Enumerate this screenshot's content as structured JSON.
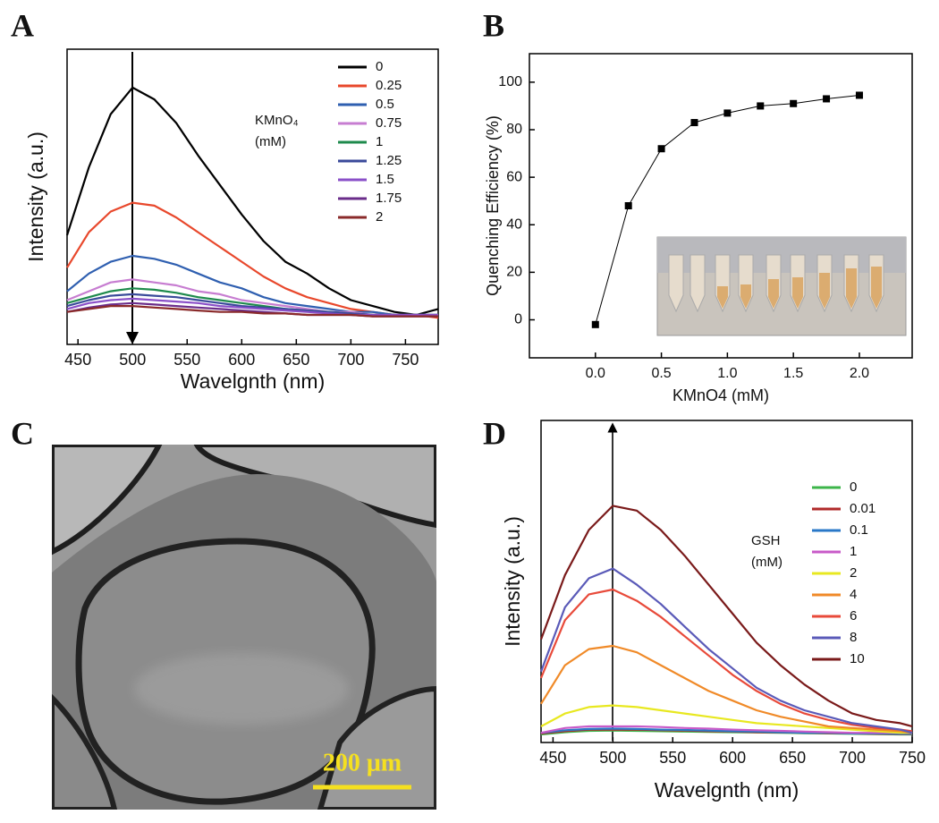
{
  "panel_labels": [
    "A",
    "B",
    "C",
    "D"
  ],
  "image": {
    "scale_bar": "200 μm"
  },
  "chart_data": [
    {
      "type": "line",
      "x_label": "Wavelgnth (nm)",
      "y_label": "Intensity (a.u.)",
      "legend_title": [
        "KMnO₄",
        "(mM)"
      ],
      "legend": "upper right",
      "xlim": [
        440,
        780
      ],
      "xticks": [
        450,
        500,
        550,
        600,
        650,
        700,
        750
      ],
      "ylim": [
        0,
        100
      ],
      "x": [
        440,
        460,
        480,
        500,
        520,
        540,
        560,
        580,
        600,
        620,
        640,
        660,
        680,
        700,
        720,
        740,
        760,
        780
      ],
      "series": [
        {
          "name": "0",
          "color": "#000000",
          "values": [
            37,
            60,
            78,
            87,
            83,
            75,
            64,
            54,
            44,
            35,
            28,
            24,
            19,
            15,
            13,
            11,
            10,
            12
          ]
        },
        {
          "name": "0.25",
          "color": "#e8482c",
          "values": [
            26,
            38,
            45,
            48,
            47,
            43,
            38,
            33,
            28,
            23,
            19,
            16,
            14,
            12,
            11,
            10,
            10,
            9
          ]
        },
        {
          "name": "0.5",
          "color": "#2f5fb0",
          "values": [
            18,
            24,
            28,
            30,
            29,
            27,
            24,
            21,
            19,
            16,
            14,
            13,
            12,
            11,
            11,
            10,
            10,
            10
          ]
        },
        {
          "name": "0.75",
          "color": "#c77dd1",
          "values": [
            15,
            18,
            21,
            22,
            21,
            20,
            18,
            17,
            15,
            14,
            13,
            12,
            11,
            11,
            10,
            10,
            10,
            10
          ]
        },
        {
          "name": "1",
          "color": "#1e8a4c",
          "values": [
            14,
            16,
            18,
            19,
            18.5,
            17.5,
            16,
            15,
            14,
            13,
            12,
            11.5,
            11,
            10.5,
            10,
            10,
            10,
            10
          ]
        },
        {
          "name": "1.25",
          "color": "#3a4a9a",
          "values": [
            13,
            15,
            16.5,
            17,
            16.5,
            16,
            15,
            14,
            13,
            12.5,
            12,
            11.5,
            11,
            10.5,
            10,
            10,
            10,
            10
          ]
        },
        {
          "name": "1.5",
          "color": "#8a4fc8",
          "values": [
            12,
            14,
            15,
            15.5,
            15,
            14.5,
            14,
            13,
            12.5,
            12,
            11.5,
            11,
            10.5,
            10,
            10,
            10,
            10,
            10
          ]
        },
        {
          "name": "1.75",
          "color": "#6a2c8a",
          "values": [
            11,
            12.5,
            13.5,
            14,
            13.5,
            13,
            12.5,
            12,
            11.5,
            11,
            10.5,
            10,
            10,
            10,
            9.5,
            9.5,
            9.5,
            9.5
          ]
        },
        {
          "name": "2",
          "color": "#8a2a2a",
          "values": [
            11,
            12,
            13,
            13,
            12.5,
            12,
            11.5,
            11,
            11,
            10.5,
            10.5,
            10,
            10,
            10,
            9.5,
            9.5,
            9.5,
            9.5
          ]
        }
      ]
    },
    {
      "type": "line",
      "markers": true,
      "color": "#000000",
      "x_label": "KMnO4 (mM)",
      "y_label": "Quenching Efficiency (%)",
      "xlim": [
        -0.5,
        2.4
      ],
      "xticks": [
        {
          "value": 0,
          "label": "0.0"
        },
        {
          "value": 0.5,
          "label": "0.5"
        },
        {
          "value": 1,
          "label": "1.0"
        },
        {
          "value": 1.5,
          "label": "1.5"
        },
        {
          "value": 2,
          "label": "2.0"
        }
      ],
      "ylim": [
        -16,
        112
      ],
      "yticks": [
        0,
        20,
        40,
        60,
        80,
        100
      ],
      "x": [
        0,
        0.25,
        0.5,
        0.75,
        1,
        1.25,
        1.5,
        1.75,
        2
      ],
      "values": [
        -2,
        48,
        72,
        83,
        87,
        90,
        91,
        93,
        94.5
      ]
    },
    {
      "type": "line",
      "x_label": "Wavelgnth (nm)",
      "y_label": "Intensity (a.u.)",
      "legend_title": [
        "GSH",
        "(mM)"
      ],
      "legend": "upper right",
      "xlim": [
        440,
        750
      ],
      "xticks": [
        450,
        500,
        550,
        600,
        650,
        700,
        750
      ],
      "ylim": [
        0,
        100
      ],
      "x": [
        440,
        460,
        480,
        500,
        520,
        540,
        560,
        580,
        600,
        620,
        640,
        660,
        680,
        700,
        720,
        740,
        750
      ],
      "series": [
        {
          "name": "0",
          "color": "#3cb54a",
          "values": [
            2.5,
            3.2,
            3.6,
            3.7,
            3.6,
            3.5,
            3.4,
            3.3,
            3.2,
            3.1,
            3,
            2.9,
            2.8,
            2.7,
            2.6,
            2.5,
            2.5
          ]
        },
        {
          "name": "0.01",
          "color": "#b02a2a",
          "values": [
            2.8,
            3.5,
            4,
            4,
            4,
            3.8,
            3.7,
            3.5,
            3.4,
            3.2,
            3.1,
            3,
            2.9,
            2.8,
            2.7,
            2.6,
            2.6
          ]
        },
        {
          "name": "0.1",
          "color": "#2a78c8",
          "values": [
            3,
            3.8,
            4.2,
            4.3,
            4.2,
            4,
            3.9,
            3.7,
            3.5,
            3.4,
            3.2,
            3,
            3,
            2.8,
            2.8,
            2.7,
            2.7
          ]
        },
        {
          "name": "1",
          "color": "#c85ac8",
          "values": [
            3,
            4.5,
            5,
            5,
            5,
            4.8,
            4.5,
            4.3,
            4,
            3.8,
            3.6,
            3.4,
            3.2,
            3,
            3,
            3,
            3
          ]
        },
        {
          "name": "2",
          "color": "#e8e820",
          "values": [
            5,
            9,
            11,
            11.5,
            11,
            10,
            9,
            8,
            7,
            6,
            5.5,
            5,
            4.5,
            4,
            3.5,
            3,
            3
          ]
        },
        {
          "name": "4",
          "color": "#f08a28",
          "values": [
            12,
            24,
            29,
            30,
            28,
            24,
            20,
            16,
            13,
            10,
            8,
            6.5,
            5,
            4.5,
            4,
            3.5,
            3
          ]
        },
        {
          "name": "6",
          "color": "#e84a3a",
          "values": [
            20,
            38,
            46,
            47.5,
            44,
            39,
            33,
            27,
            21,
            16,
            12,
            9,
            7,
            5.5,
            4.5,
            4,
            3.5
          ]
        },
        {
          "name": "8",
          "color": "#5a5ab8",
          "values": [
            22,
            42,
            51,
            54,
            49,
            43,
            36,
            29,
            23,
            17,
            13,
            10,
            8,
            6,
            5,
            4,
            3
          ]
        },
        {
          "name": "10",
          "color": "#7a1a1a",
          "values": [
            32,
            52,
            66,
            73.5,
            72,
            66,
            58,
            49,
            40,
            31,
            24,
            18,
            13,
            9,
            7,
            6,
            5
          ]
        }
      ]
    }
  ]
}
